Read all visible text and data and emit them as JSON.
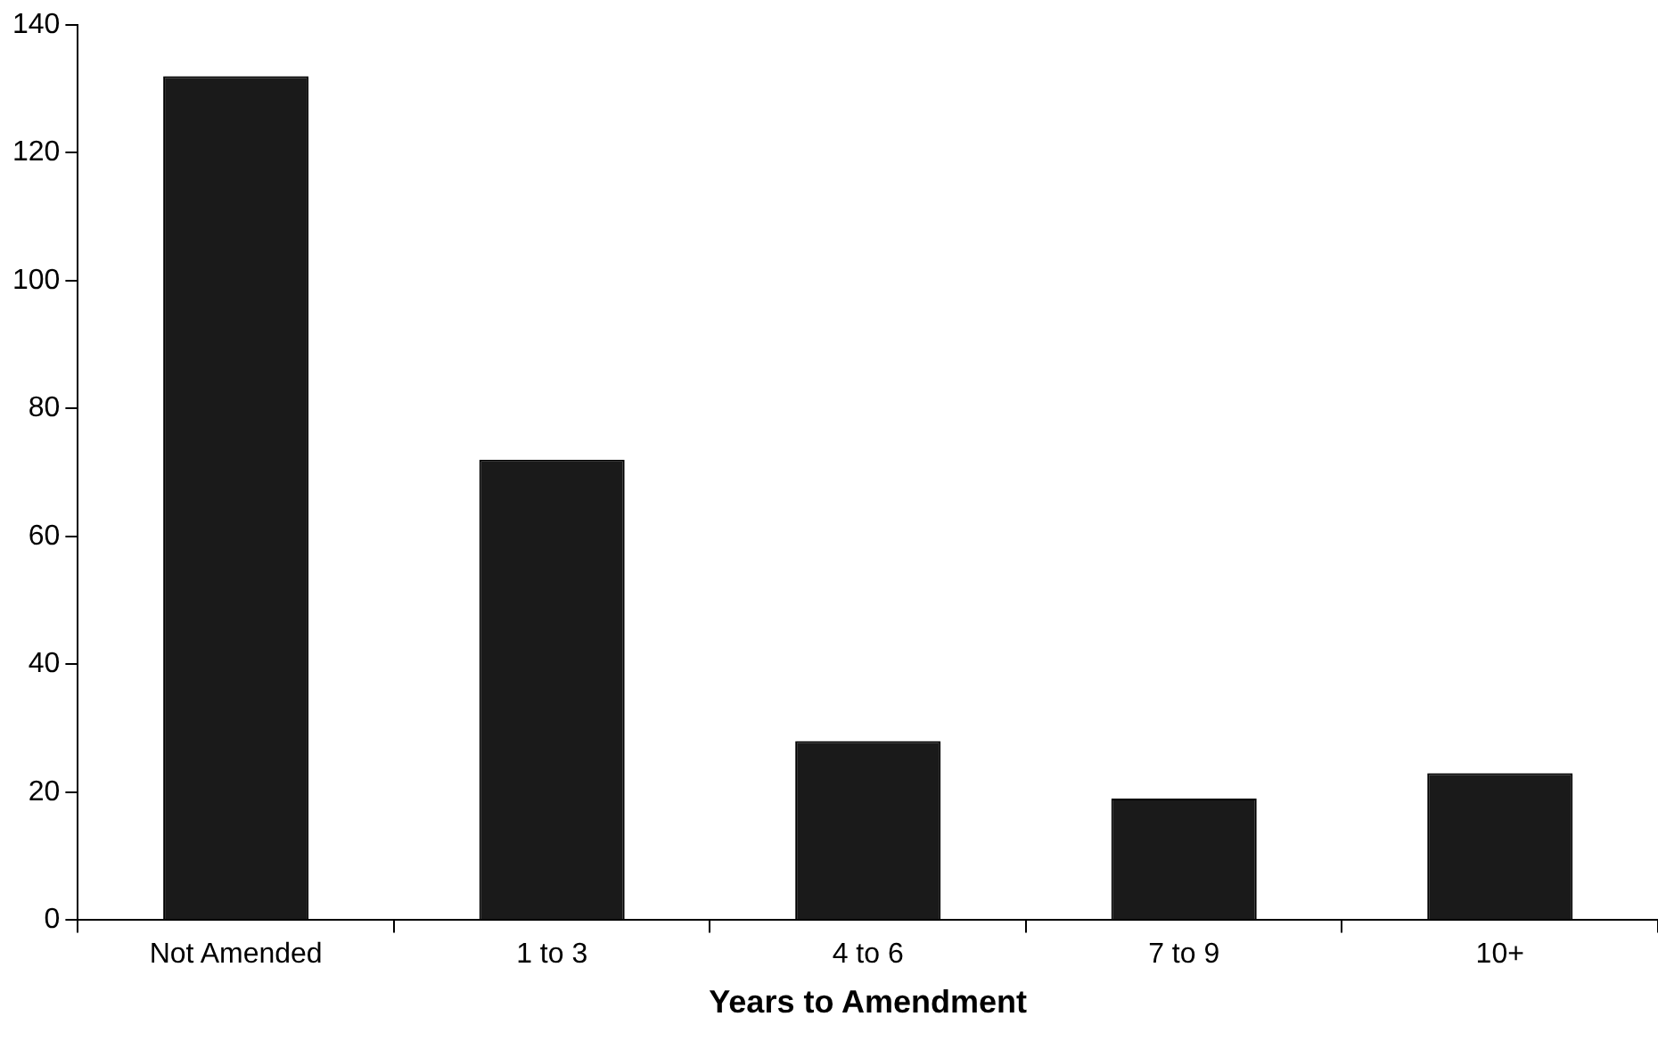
{
  "chart_data": {
    "type": "bar",
    "xlabel": "Years to Amendment",
    "categories": [
      "Not Amended",
      "1 to 3",
      "4 to 6",
      "7 to 9",
      "10+"
    ],
    "values": [
      132,
      72,
      28,
      19,
      23
    ],
    "color": "#1a1a1a",
    "ylim": [
      0,
      140
    ],
    "yticks": [
      0,
      20,
      40,
      60,
      80,
      100,
      120,
      140
    ],
    "grid": false,
    "legend": false
  }
}
